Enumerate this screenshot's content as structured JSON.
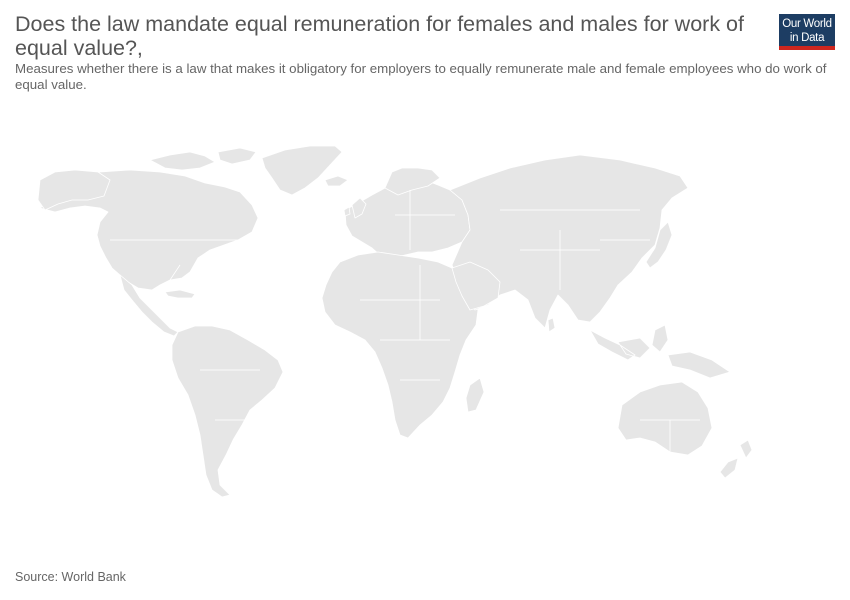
{
  "header": {
    "title": "Does the law mandate equal remuneration for females and males for work of equal value?,",
    "subtitle": "Measures whether there is a law that makes it obligatory for employers to equally remunerate male and female employees who do work of equal value."
  },
  "logo": {
    "line1": "Our World",
    "line2": "in Data",
    "background_color": "#1d3d63",
    "accent_color": "#ce261e"
  },
  "map": {
    "land_color": "#e6e6e6",
    "border_color": "#ffffff"
  },
  "footer": {
    "source": "Source: World Bank"
  }
}
